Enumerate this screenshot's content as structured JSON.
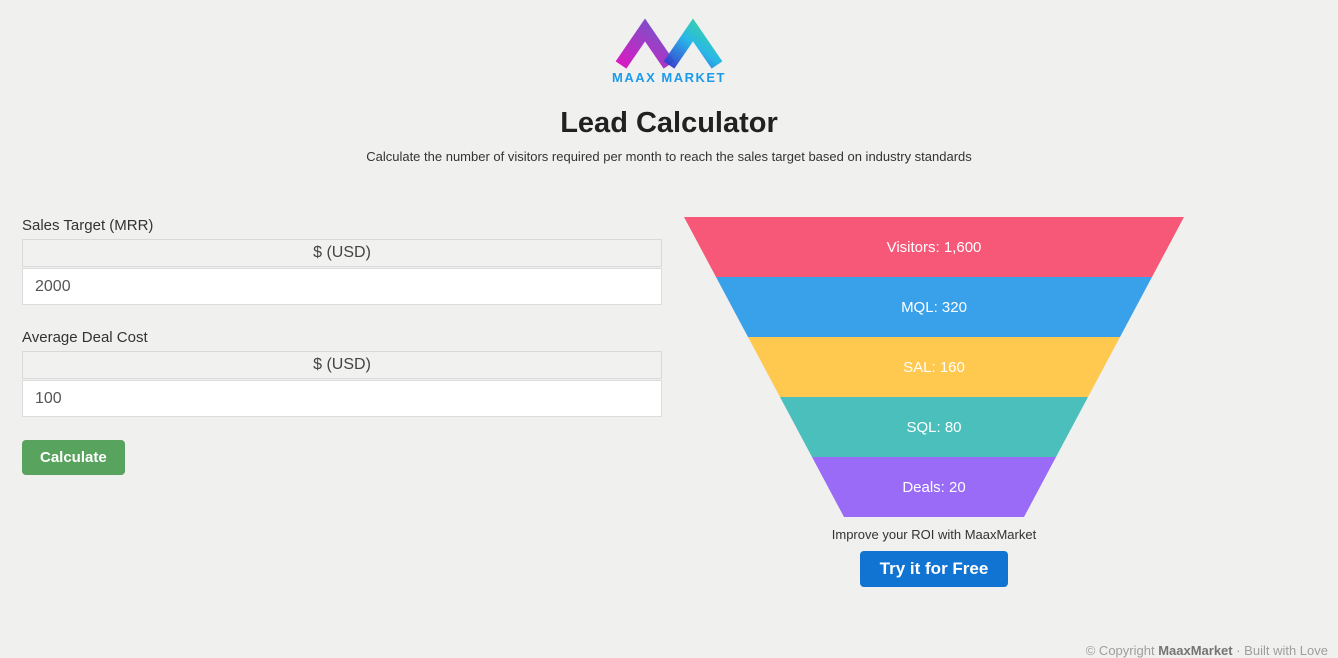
{
  "logo": {
    "icon": "maax-market-m-logo",
    "text": "MAAX MARKET",
    "text_color": "#1C9BEA"
  },
  "page": {
    "title": "Lead Calculator",
    "subtitle": "Calculate the number of visitors required per month to reach the sales target based on industry standards"
  },
  "form": {
    "fields": [
      {
        "label": "Sales Target (MRR)",
        "currency_header": "$ (USD)",
        "value": "2000"
      },
      {
        "label": "Average Deal Cost",
        "currency_header": "$ (USD)",
        "value": "100"
      }
    ],
    "submit_label": "Calculate",
    "submit_color": "#58A35D"
  },
  "chart_data": {
    "type": "funnel",
    "stages": [
      {
        "label": "Visitors",
        "value": 1600,
        "display": "Visitors: 1,600",
        "color": "#F85878"
      },
      {
        "label": "MQL",
        "value": 320,
        "display": "MQL: 320",
        "color": "#39A0EA"
      },
      {
        "label": "SAL",
        "value": 160,
        "display": "SAL: 160",
        "color": "#FFC84E"
      },
      {
        "label": "SQL",
        "value": 80,
        "display": "SQL: 80",
        "color": "#4BBFBC"
      },
      {
        "label": "Deals",
        "value": 20,
        "display": "Deals: 20",
        "color": "#9A6BF7"
      }
    ]
  },
  "cta": {
    "caption": "Improve your ROI with MaaxMarket",
    "button_label": "Try it for Free",
    "button_color": "#1173D2"
  },
  "footer": {
    "prefix": "© Copyright ",
    "brand": "MaaxMarket",
    "suffix": " · Built with Love"
  }
}
